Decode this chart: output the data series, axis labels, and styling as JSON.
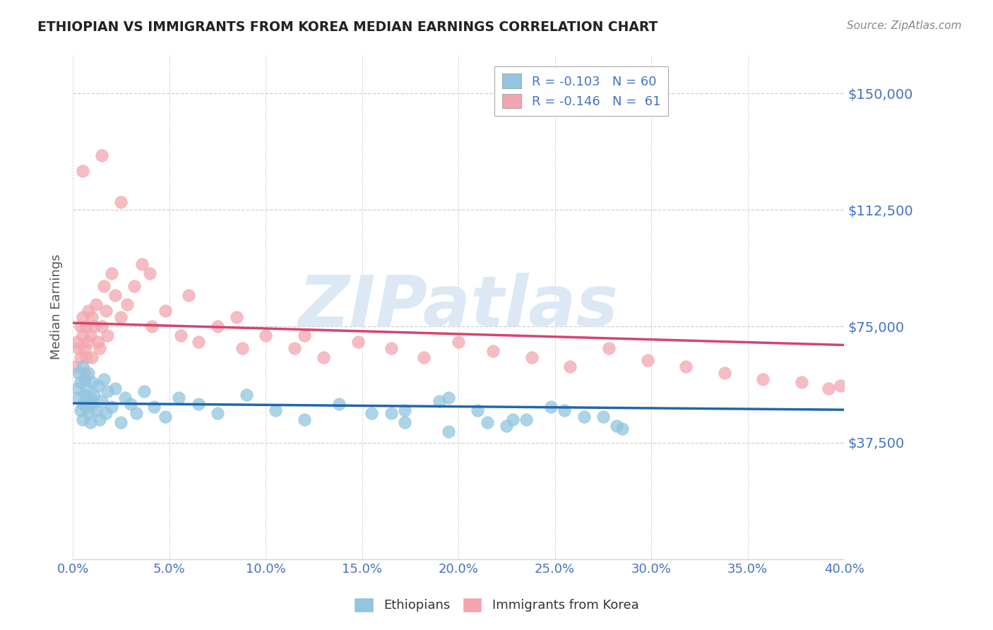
{
  "title": "ETHIOPIAN VS IMMIGRANTS FROM KOREA MEDIAN EARNINGS CORRELATION CHART",
  "source_text": "Source: ZipAtlas.com",
  "ylabel": "Median Earnings",
  "xlim": [
    0.0,
    0.4
  ],
  "ylim": [
    0,
    162500
  ],
  "yticks": [
    37500,
    75000,
    112500,
    150000
  ],
  "ytick_labels": [
    "$37,500",
    "$75,000",
    "$112,500",
    "$150,000"
  ],
  "xtick_labels": [
    "0.0%",
    "",
    "",
    "",
    "",
    "",
    "",
    "",
    "",
    "5.0%",
    "",
    "",
    "",
    "",
    "",
    "",
    "",
    "",
    "",
    "10.0%",
    "",
    "",
    "",
    "",
    "",
    "",
    "",
    "",
    "",
    "15.0%",
    "",
    "",
    "",
    "",
    "",
    "",
    "",
    "",
    "",
    "20.0%",
    "",
    "",
    "",
    "",
    "",
    "",
    "",
    "",
    "",
    "25.0%",
    "",
    "",
    "",
    "",
    "",
    "",
    "",
    "",
    "",
    "30.0%",
    "",
    "",
    "",
    "",
    "",
    "",
    "",
    "",
    "",
    "35.0%",
    "",
    "",
    "",
    "",
    "",
    "",
    "",
    "",
    "",
    "40.0%"
  ],
  "xticks_major": [
    0.0,
    0.05,
    0.1,
    0.15,
    0.2,
    0.25,
    0.3,
    0.35,
    0.4
  ],
  "xtick_major_labels": [
    "0.0%",
    "5.0%",
    "10.0%",
    "15.0%",
    "20.0%",
    "25.0%",
    "30.0%",
    "35.0%",
    "40.0%"
  ],
  "ethiopians_color": "#92c5de",
  "korea_color": "#f4a6b0",
  "trend_ethiopians_color": "#2166ac",
  "trend_korea_color": "#d6436e",
  "watermark": "ZIPatlas",
  "watermark_color": "#dce9f5",
  "background_color": "#ffffff",
  "grid_color": "#d0d0d0",
  "title_color": "#222222",
  "axis_label_color": "#555555",
  "ytick_color": "#4472c4",
  "xtick_color": "#4472c4",
  "source_color": "#888888",
  "legend_r_eth": "R = -0.103",
  "legend_n_eth": "N = 60",
  "legend_r_kor": "R = -0.146",
  "legend_n_kor": "N =  61",
  "legend_label_eth": "Ethiopians",
  "legend_label_kor": "Immigrants from Korea",
  "eth_x": [
    0.002,
    0.003,
    0.003,
    0.004,
    0.004,
    0.005,
    0.005,
    0.005,
    0.006,
    0.006,
    0.007,
    0.007,
    0.008,
    0.008,
    0.009,
    0.009,
    0.01,
    0.01,
    0.011,
    0.012,
    0.013,
    0.014,
    0.015,
    0.016,
    0.017,
    0.018,
    0.02,
    0.022,
    0.025,
    0.027,
    0.03,
    0.033,
    0.037,
    0.042,
    0.048,
    0.055,
    0.065,
    0.075,
    0.09,
    0.105,
    0.12,
    0.138,
    0.155,
    0.172,
    0.19,
    0.21,
    0.228,
    0.248,
    0.265,
    0.282,
    0.172,
    0.225,
    0.275,
    0.195,
    0.215,
    0.165,
    0.195,
    0.235,
    0.255,
    0.285
  ],
  "eth_y": [
    55000,
    52000,
    60000,
    48000,
    57000,
    62000,
    50000,
    45000,
    58000,
    53000,
    49000,
    55000,
    47000,
    60000,
    52000,
    44000,
    57000,
    50000,
    53000,
    48000,
    56000,
    45000,
    51000,
    58000,
    47000,
    54000,
    49000,
    55000,
    44000,
    52000,
    50000,
    47000,
    54000,
    49000,
    46000,
    52000,
    50000,
    47000,
    53000,
    48000,
    45000,
    50000,
    47000,
    44000,
    51000,
    48000,
    45000,
    49000,
    46000,
    43000,
    48000,
    43000,
    46000,
    52000,
    44000,
    47000,
    41000,
    45000,
    48000,
    42000
  ],
  "kor_x": [
    0.001,
    0.002,
    0.003,
    0.004,
    0.004,
    0.005,
    0.005,
    0.006,
    0.006,
    0.007,
    0.007,
    0.008,
    0.008,
    0.009,
    0.01,
    0.01,
    0.011,
    0.012,
    0.013,
    0.014,
    0.015,
    0.016,
    0.017,
    0.018,
    0.02,
    0.022,
    0.025,
    0.028,
    0.032,
    0.036,
    0.041,
    0.048,
    0.056,
    0.065,
    0.075,
    0.088,
    0.1,
    0.115,
    0.13,
    0.148,
    0.165,
    0.182,
    0.2,
    0.218,
    0.238,
    0.258,
    0.278,
    0.298,
    0.318,
    0.338,
    0.358,
    0.378,
    0.392,
    0.398,
    0.12,
    0.085,
    0.06,
    0.04,
    0.025,
    0.015,
    0.005
  ],
  "kor_y": [
    62000,
    70000,
    68000,
    75000,
    65000,
    72000,
    78000,
    60000,
    68000,
    75000,
    65000,
    80000,
    70000,
    72000,
    78000,
    65000,
    75000,
    82000,
    70000,
    68000,
    75000,
    88000,
    80000,
    72000,
    92000,
    85000,
    78000,
    82000,
    88000,
    95000,
    75000,
    80000,
    72000,
    70000,
    75000,
    68000,
    72000,
    68000,
    65000,
    70000,
    68000,
    65000,
    70000,
    67000,
    65000,
    62000,
    68000,
    64000,
    62000,
    60000,
    58000,
    57000,
    55000,
    56000,
    72000,
    78000,
    85000,
    92000,
    115000,
    130000,
    125000
  ]
}
